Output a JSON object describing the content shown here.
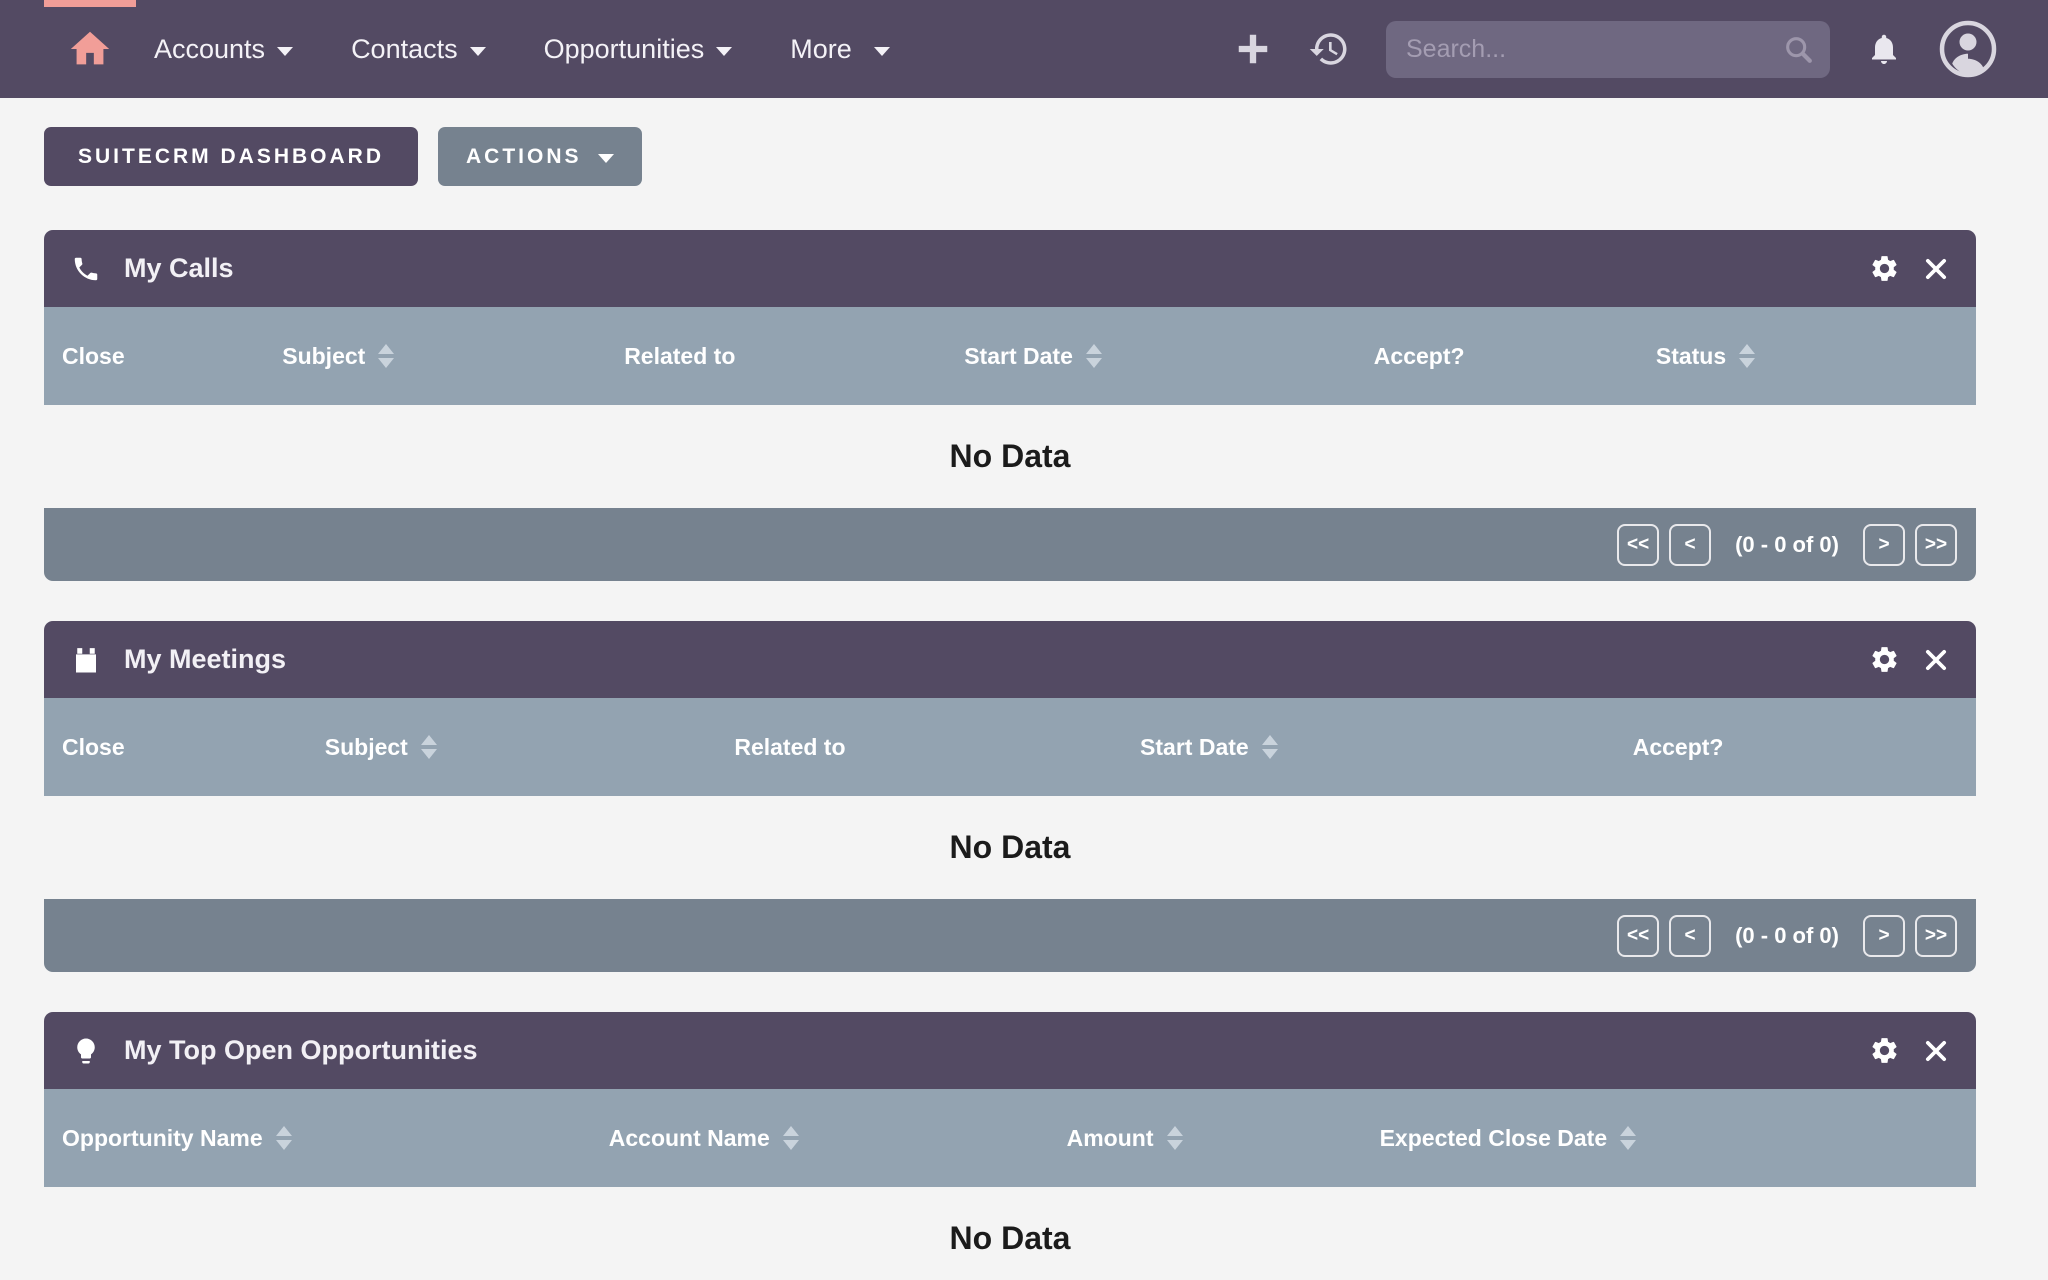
{
  "colors": {
    "navbar": "#534a63",
    "panel_header": "#534a63",
    "table_header": "#93a3b1",
    "pagination_bar": "#76828f",
    "page_bg": "#f4f4f4",
    "accent": "#f19e98",
    "button_secondary": "#76828f",
    "search_bg": "#6f6881"
  },
  "nav": {
    "home_icon": "home-icon",
    "items": [
      {
        "label": "Accounts"
      },
      {
        "label": "Contacts"
      },
      {
        "label": "Opportunities"
      },
      {
        "label": "More"
      }
    ],
    "icons": [
      "plus-icon",
      "history-icon",
      "search-icon",
      "bell-icon",
      "avatar-icon"
    ],
    "search": {
      "placeholder": "Search...",
      "value": ""
    }
  },
  "toolbar": {
    "dashboard_button": "SUITECRM DASHBOARD",
    "actions_button": "ACTIONS"
  },
  "pager_symbols": {
    "first": "<<",
    "prev": "<",
    "next": ">",
    "last": ">>"
  },
  "dashlets": [
    {
      "title": "My Calls",
      "icon": "phone-icon",
      "no_data": "No Data",
      "pagination_label": "(0 - 0 of 0)",
      "columns": [
        {
          "label": "Close",
          "sortable": false
        },
        {
          "label": "Subject",
          "sortable": true
        },
        {
          "label": "Related to",
          "sortable": false
        },
        {
          "label": "Start Date",
          "sortable": true
        },
        {
          "label": "Accept?",
          "sortable": false
        },
        {
          "label": "Status",
          "sortable": true
        }
      ]
    },
    {
      "title": "My Meetings",
      "icon": "calendar-icon",
      "no_data": "No Data",
      "pagination_label": "(0 - 0 of 0)",
      "columns": [
        {
          "label": "Close",
          "sortable": false
        },
        {
          "label": "Subject",
          "sortable": true
        },
        {
          "label": "Related to",
          "sortable": false
        },
        {
          "label": "Start Date",
          "sortable": true
        },
        {
          "label": "Accept?",
          "sortable": false
        }
      ]
    },
    {
      "title": "My Top Open Opportunities",
      "icon": "lightbulb-icon",
      "no_data": "No Data",
      "columns": [
        {
          "label": "Opportunity Name",
          "sortable": true
        },
        {
          "label": "Account Name",
          "sortable": true
        },
        {
          "label": "Amount",
          "sortable": true
        },
        {
          "label": "Expected Close Date",
          "sortable": true
        }
      ]
    }
  ]
}
